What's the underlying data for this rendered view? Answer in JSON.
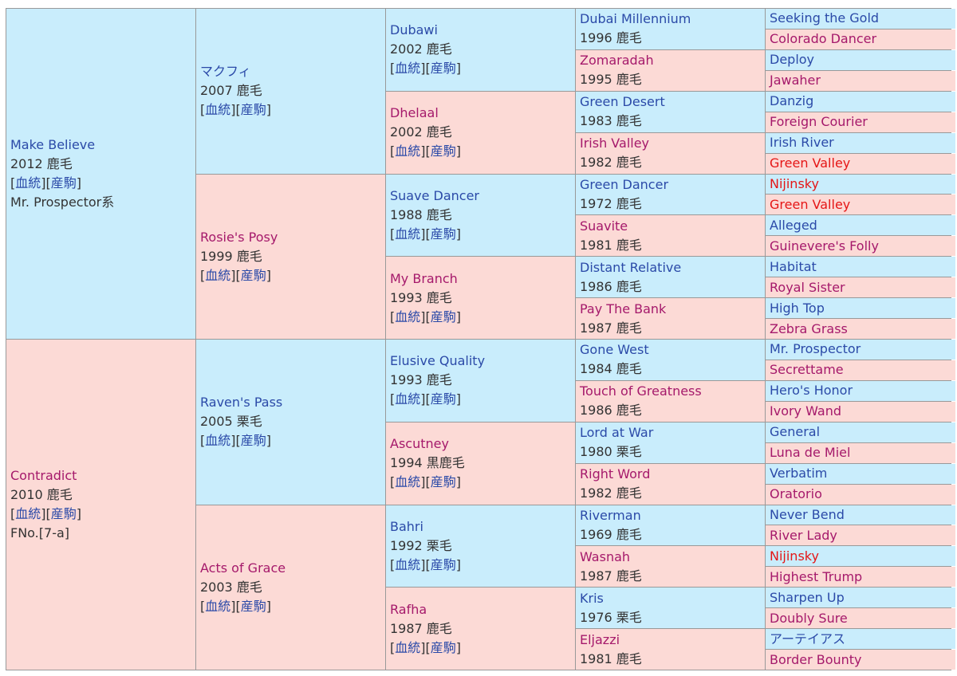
{
  "link_labels": {
    "pedigree": "血統",
    "progeny": "産駒"
  },
  "colors": {
    "sire_bg": "#c9edfc",
    "dam_bg": "#fcdad6",
    "sire_text": "#2b4aa8",
    "dam_text": "#a5196b",
    "inbreeding_text": "#e51616"
  },
  "pedigree": [
    {
      "gen": 1,
      "slot": 0,
      "name": "Make Believe",
      "meta": "2012 鹿毛",
      "has_links": true,
      "extra": "Mr. Prospector系"
    },
    {
      "gen": 1,
      "slot": 1,
      "name": "Contradict",
      "meta": "2010 鹿毛",
      "has_links": true,
      "extra": "FNo.[7-a]"
    },
    {
      "gen": 2,
      "slot": 0,
      "name": "マクフィ",
      "meta": "2007 鹿毛",
      "has_links": true
    },
    {
      "gen": 2,
      "slot": 1,
      "name": "Rosie's Posy",
      "meta": "1999 鹿毛",
      "has_links": true
    },
    {
      "gen": 2,
      "slot": 2,
      "name": "Raven's Pass",
      "meta": "2005 栗毛",
      "has_links": true
    },
    {
      "gen": 2,
      "slot": 3,
      "name": "Acts of Grace",
      "meta": "2003 鹿毛",
      "has_links": true
    },
    {
      "gen": 3,
      "slot": 0,
      "name": "Dubawi",
      "meta": "2002 鹿毛",
      "has_links": true
    },
    {
      "gen": 3,
      "slot": 1,
      "name": "Dhelaal",
      "meta": "2002 鹿毛",
      "has_links": true
    },
    {
      "gen": 3,
      "slot": 2,
      "name": "Suave Dancer",
      "meta": "1988 鹿毛",
      "has_links": true
    },
    {
      "gen": 3,
      "slot": 3,
      "name": "My Branch",
      "meta": "1993 鹿毛",
      "has_links": true
    },
    {
      "gen": 3,
      "slot": 4,
      "name": "Elusive Quality",
      "meta": "1993 鹿毛",
      "has_links": true
    },
    {
      "gen": 3,
      "slot": 5,
      "name": "Ascutney",
      "meta": "1994 黒鹿毛",
      "has_links": true
    },
    {
      "gen": 3,
      "slot": 6,
      "name": "Bahri",
      "meta": "1992 栗毛",
      "has_links": true
    },
    {
      "gen": 3,
      "slot": 7,
      "name": "Rafha",
      "meta": "1987 鹿毛",
      "has_links": true
    },
    {
      "gen": 4,
      "slot": 0,
      "name": "Dubai Millennium",
      "meta": "1996 鹿毛"
    },
    {
      "gen": 4,
      "slot": 1,
      "name": "Zomaradah",
      "meta": "1995 鹿毛"
    },
    {
      "gen": 4,
      "slot": 2,
      "name": "Green Desert",
      "meta": "1983 鹿毛"
    },
    {
      "gen": 4,
      "slot": 3,
      "name": "Irish Valley",
      "meta": "1982 鹿毛"
    },
    {
      "gen": 4,
      "slot": 4,
      "name": "Green Dancer",
      "meta": "1972 鹿毛"
    },
    {
      "gen": 4,
      "slot": 5,
      "name": "Suavite",
      "meta": "1981 鹿毛"
    },
    {
      "gen": 4,
      "slot": 6,
      "name": "Distant Relative",
      "meta": "1986 鹿毛"
    },
    {
      "gen": 4,
      "slot": 7,
      "name": "Pay The Bank",
      "meta": "1987 鹿毛"
    },
    {
      "gen": 4,
      "slot": 8,
      "name": "Gone West",
      "meta": "1984 鹿毛"
    },
    {
      "gen": 4,
      "slot": 9,
      "name": "Touch of Greatness",
      "meta": "1986 鹿毛"
    },
    {
      "gen": 4,
      "slot": 10,
      "name": "Lord at War",
      "meta": "1980 栗毛"
    },
    {
      "gen": 4,
      "slot": 11,
      "name": "Right Word",
      "meta": "1982 鹿毛"
    },
    {
      "gen": 4,
      "slot": 12,
      "name": "Riverman",
      "meta": "1969 鹿毛"
    },
    {
      "gen": 4,
      "slot": 13,
      "name": "Wasnah",
      "meta": "1987 鹿毛"
    },
    {
      "gen": 4,
      "slot": 14,
      "name": "Kris",
      "meta": "1976 栗毛"
    },
    {
      "gen": 4,
      "slot": 15,
      "name": "Eljazzi",
      "meta": "1981 鹿毛"
    },
    {
      "gen": 5,
      "slot": 0,
      "name": "Seeking the Gold"
    },
    {
      "gen": 5,
      "slot": 1,
      "name": "Colorado Dancer"
    },
    {
      "gen": 5,
      "slot": 2,
      "name": "Deploy"
    },
    {
      "gen": 5,
      "slot": 3,
      "name": "Jawaher"
    },
    {
      "gen": 5,
      "slot": 4,
      "name": "Danzig"
    },
    {
      "gen": 5,
      "slot": 5,
      "name": "Foreign Courier"
    },
    {
      "gen": 5,
      "slot": 6,
      "name": "Irish River"
    },
    {
      "gen": 5,
      "slot": 7,
      "name": "Green Valley",
      "inbred": true
    },
    {
      "gen": 5,
      "slot": 8,
      "name": "Nijinsky",
      "inbred": true
    },
    {
      "gen": 5,
      "slot": 9,
      "name": "Green Valley",
      "inbred": true
    },
    {
      "gen": 5,
      "slot": 10,
      "name": "Alleged"
    },
    {
      "gen": 5,
      "slot": 11,
      "name": "Guinevere's Folly"
    },
    {
      "gen": 5,
      "slot": 12,
      "name": "Habitat"
    },
    {
      "gen": 5,
      "slot": 13,
      "name": "Royal Sister"
    },
    {
      "gen": 5,
      "slot": 14,
      "name": "High Top"
    },
    {
      "gen": 5,
      "slot": 15,
      "name": "Zebra Grass"
    },
    {
      "gen": 5,
      "slot": 16,
      "name": "Mr. Prospector"
    },
    {
      "gen": 5,
      "slot": 17,
      "name": "Secrettame"
    },
    {
      "gen": 5,
      "slot": 18,
      "name": "Hero's Honor"
    },
    {
      "gen": 5,
      "slot": 19,
      "name": "Ivory Wand"
    },
    {
      "gen": 5,
      "slot": 20,
      "name": "General"
    },
    {
      "gen": 5,
      "slot": 21,
      "name": "Luna de Miel"
    },
    {
      "gen": 5,
      "slot": 22,
      "name": "Verbatim"
    },
    {
      "gen": 5,
      "slot": 23,
      "name": "Oratorio"
    },
    {
      "gen": 5,
      "slot": 24,
      "name": "Never Bend"
    },
    {
      "gen": 5,
      "slot": 25,
      "name": "River Lady"
    },
    {
      "gen": 5,
      "slot": 26,
      "name": "Nijinsky",
      "inbred": true
    },
    {
      "gen": 5,
      "slot": 27,
      "name": "Highest Trump"
    },
    {
      "gen": 5,
      "slot": 28,
      "name": "Sharpen Up"
    },
    {
      "gen": 5,
      "slot": 29,
      "name": "Doubly Sure"
    },
    {
      "gen": 5,
      "slot": 30,
      "name": "アーテイアス"
    },
    {
      "gen": 5,
      "slot": 31,
      "name": "Border Bounty"
    }
  ]
}
